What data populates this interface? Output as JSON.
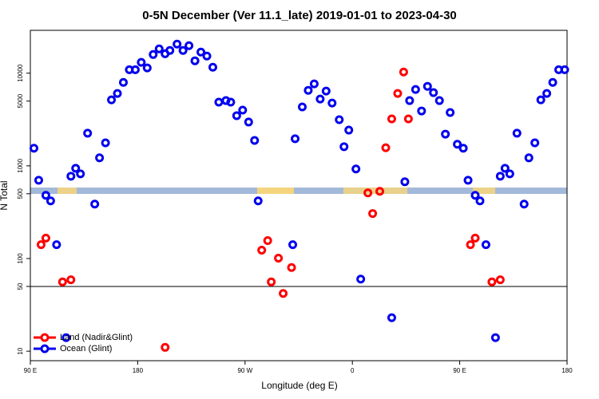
{
  "chart_data": {
    "type": "scatter",
    "title": "0-5N December (Ver 11.1_late)   2019-01-01 to 2023-04-30",
    "x_label": "Longitude (deg E)",
    "y_label": "N Total",
    "log_y": true,
    "legend": "bottom-left",
    "xlim": [
      90,
      540
    ],
    "ylim": [
      7.9,
      29000
    ],
    "xticks": [
      {
        "value": 90,
        "label": "90 E"
      },
      {
        "value": 180,
        "label": "180"
      },
      {
        "value": 270,
        "label": "90 W"
      },
      {
        "value": 360,
        "label": "0"
      },
      {
        "value": 450,
        "label": "90 E"
      },
      {
        "value": 540,
        "label": "180"
      }
    ],
    "yticks": [
      10,
      50,
      100,
      500,
      1000,
      5000,
      10000
    ],
    "series": [
      {
        "name": "Land (Nadir&Glint)",
        "color": "#ff0000",
        "x": [
          99,
          103,
          117,
          124,
          203,
          284,
          289,
          292,
          298,
          302,
          309,
          373,
          377,
          383,
          388,
          393,
          398,
          403,
          407,
          459,
          463,
          477,
          484
        ],
        "values": [
          141,
          166,
          56,
          59,
          11,
          123,
          156,
          56,
          101,
          42,
          80,
          511,
          306,
          531,
          1570,
          3210,
          6040,
          10300,
          3210,
          141,
          166,
          56,
          59
        ]
      },
      {
        "name": "Ocean (Glint)",
        "color": "#0000ee",
        "x": [
          93,
          97,
          103,
          107,
          112,
          120,
          124,
          128,
          132,
          138,
          144,
          148,
          153,
          158,
          163,
          168,
          173,
          178,
          183,
          188,
          193,
          198,
          203,
          207,
          213,
          218,
          223,
          228,
          233,
          238,
          243,
          248,
          254,
          258,
          263,
          268,
          273,
          278,
          281,
          310,
          312,
          318,
          323,
          328,
          333,
          338,
          343,
          349,
          353,
          357,
          363,
          367,
          393,
          404,
          408,
          413,
          418,
          423,
          428,
          433,
          438,
          442,
          448,
          453,
          457,
          463,
          467,
          472,
          480,
          484,
          488,
          492,
          498,
          504,
          508,
          513,
          518,
          523,
          528,
          533,
          538
        ],
        "values": [
          1550,
          700,
          481,
          419,
          141,
          14,
          773,
          942,
          820,
          2250,
          387,
          1220,
          1770,
          5150,
          6040,
          7960,
          10900,
          10900,
          13100,
          11400,
          15900,
          18300,
          16200,
          17600,
          20600,
          17600,
          19800,
          13600,
          16900,
          15300,
          11600,
          4870,
          5060,
          4870,
          3480,
          3990,
          2970,
          1880,
          419,
          141,
          1960,
          4320,
          6530,
          7660,
          5260,
          6410,
          4760,
          3150,
          1610,
          2430,
          925,
          60,
          23,
          673,
          5060,
          6670,
          3910,
          7210,
          6170,
          5060,
          2200,
          3760,
          1710,
          1550,
          700,
          481,
          419,
          141,
          14,
          773,
          942,
          820,
          2250,
          387,
          1220,
          1770,
          5150,
          6040,
          7960,
          10900,
          10900
        ]
      }
    ]
  }
}
